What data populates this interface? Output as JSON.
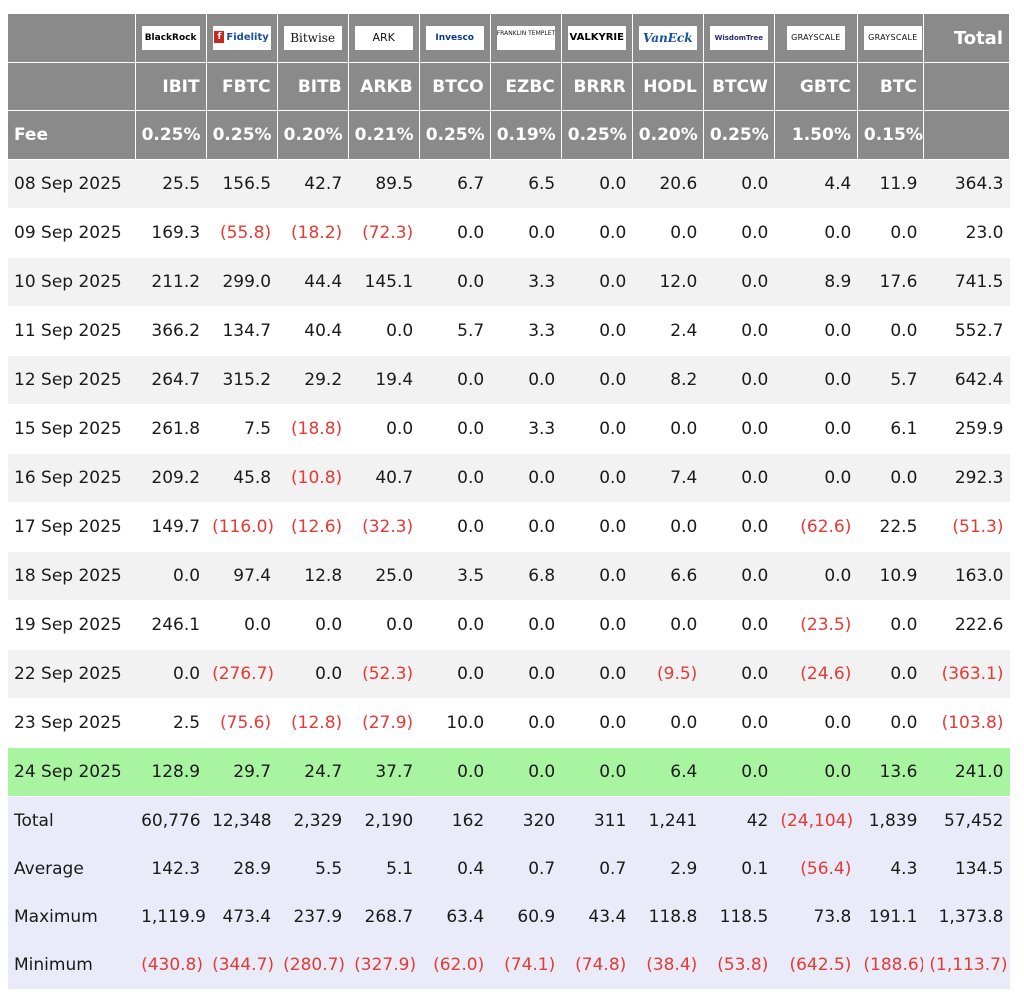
{
  "columns": [
    {
      "logo_text": "BlackRock",
      "logo_icon": "blackrock-logo",
      "ticker": "IBIT",
      "fee": "0.25%"
    },
    {
      "logo_text": "Fidelity",
      "logo_icon": "fidelity-logo",
      "ticker": "FBTC",
      "fee": "0.25%"
    },
    {
      "logo_text": "Bitwise",
      "logo_icon": "bitwise-logo",
      "ticker": "BITB",
      "fee": "0.20%"
    },
    {
      "logo_text": "ARK",
      "logo_icon": "ark-invest-logo",
      "ticker": "ARKB",
      "fee": "0.21%"
    },
    {
      "logo_text": "Invesco",
      "logo_icon": "invesco-logo",
      "ticker": "BTCO",
      "fee": "0.25%"
    },
    {
      "logo_text": "FRANKLIN TEMPLETON",
      "logo_icon": "franklin-templeton-logo",
      "ticker": "EZBC",
      "fee": "0.19%"
    },
    {
      "logo_text": "VALKYRIE",
      "logo_icon": "valkyrie-logo",
      "ticker": "BRRR",
      "fee": "0.25%"
    },
    {
      "logo_text": "VanEck",
      "logo_icon": "vaneck-logo",
      "ticker": "HODL",
      "fee": "0.20%"
    },
    {
      "logo_text": "WisdomTree",
      "logo_icon": "wisdomtree-logo",
      "ticker": "BTCW",
      "fee": "0.25%"
    },
    {
      "logo_text": "GRAYSCALE",
      "logo_icon": "grayscale-logo",
      "ticker": "GBTC",
      "fee": "1.50%"
    },
    {
      "logo_text": "GRAYSCALE",
      "logo_icon": "grayscale-logo",
      "ticker": "BTC",
      "fee": "0.15%"
    }
  ],
  "header": {
    "total_label": "Total",
    "fee_label": "Fee"
  },
  "rows": [
    {
      "date": "08 Sep 2025",
      "values": [
        "25.5",
        "156.5",
        "42.7",
        "89.5",
        "6.7",
        "6.5",
        "0.0",
        "20.6",
        "0.0",
        "4.4",
        "11.9"
      ],
      "total": "364.3"
    },
    {
      "date": "09 Sep 2025",
      "values": [
        "169.3",
        "(55.8)",
        "(18.2)",
        "(72.3)",
        "0.0",
        "0.0",
        "0.0",
        "0.0",
        "0.0",
        "0.0",
        "0.0"
      ],
      "total": "23.0"
    },
    {
      "date": "10 Sep 2025",
      "values": [
        "211.2",
        "299.0",
        "44.4",
        "145.1",
        "0.0",
        "3.3",
        "0.0",
        "12.0",
        "0.0",
        "8.9",
        "17.6"
      ],
      "total": "741.5"
    },
    {
      "date": "11 Sep 2025",
      "values": [
        "366.2",
        "134.7",
        "40.4",
        "0.0",
        "5.7",
        "3.3",
        "0.0",
        "2.4",
        "0.0",
        "0.0",
        "0.0"
      ],
      "total": "552.7"
    },
    {
      "date": "12 Sep 2025",
      "values": [
        "264.7",
        "315.2",
        "29.2",
        "19.4",
        "0.0",
        "0.0",
        "0.0",
        "8.2",
        "0.0",
        "0.0",
        "5.7"
      ],
      "total": "642.4"
    },
    {
      "date": "15 Sep 2025",
      "values": [
        "261.8",
        "7.5",
        "(18.8)",
        "0.0",
        "0.0",
        "3.3",
        "0.0",
        "0.0",
        "0.0",
        "0.0",
        "6.1"
      ],
      "total": "259.9"
    },
    {
      "date": "16 Sep 2025",
      "values": [
        "209.2",
        "45.8",
        "(10.8)",
        "40.7",
        "0.0",
        "0.0",
        "0.0",
        "7.4",
        "0.0",
        "0.0",
        "0.0"
      ],
      "total": "292.3"
    },
    {
      "date": "17 Sep 2025",
      "values": [
        "149.7",
        "(116.0)",
        "(12.6)",
        "(32.3)",
        "0.0",
        "0.0",
        "0.0",
        "0.0",
        "0.0",
        "(62.6)",
        "22.5"
      ],
      "total": "(51.3)"
    },
    {
      "date": "18 Sep 2025",
      "values": [
        "0.0",
        "97.4",
        "12.8",
        "25.0",
        "3.5",
        "6.8",
        "0.0",
        "6.6",
        "0.0",
        "0.0",
        "10.9"
      ],
      "total": "163.0"
    },
    {
      "date": "19 Sep 2025",
      "values": [
        "246.1",
        "0.0",
        "0.0",
        "0.0",
        "0.0",
        "0.0",
        "0.0",
        "0.0",
        "0.0",
        "(23.5)",
        "0.0"
      ],
      "total": "222.6"
    },
    {
      "date": "22 Sep 2025",
      "values": [
        "0.0",
        "(276.7)",
        "0.0",
        "(52.3)",
        "0.0",
        "0.0",
        "0.0",
        "(9.5)",
        "0.0",
        "(24.6)",
        "0.0"
      ],
      "total": "(363.1)"
    },
    {
      "date": "23 Sep 2025",
      "values": [
        "2.5",
        "(75.6)",
        "(12.8)",
        "(27.9)",
        "10.0",
        "0.0",
        "0.0",
        "0.0",
        "0.0",
        "0.0",
        "0.0"
      ],
      "total": "(103.8)"
    },
    {
      "date": "24 Sep 2025",
      "values": [
        "128.9",
        "29.7",
        "24.7",
        "37.7",
        "0.0",
        "0.0",
        "0.0",
        "6.4",
        "0.0",
        "0.0",
        "13.6"
      ],
      "total": "241.0",
      "highlight": true
    }
  ],
  "stats": [
    {
      "label": "Total",
      "values": [
        "60,776",
        "12,348",
        "2,329",
        "2,190",
        "162",
        "320",
        "311",
        "1,241",
        "42",
        "(24,104)",
        "1,839"
      ],
      "total": "57,452"
    },
    {
      "label": "Average",
      "values": [
        "142.3",
        "28.9",
        "5.5",
        "5.1",
        "0.4",
        "0.7",
        "0.7",
        "2.9",
        "0.1",
        "(56.4)",
        "4.3"
      ],
      "total": "134.5"
    },
    {
      "label": "Maximum",
      "values": [
        "1,119.9",
        "473.4",
        "237.9",
        "268.7",
        "63.4",
        "60.9",
        "43.4",
        "118.8",
        "118.5",
        "73.8",
        "191.1"
      ],
      "total": "1,373.8"
    },
    {
      "label": "Minimum",
      "values": [
        "(430.8)",
        "(344.7)",
        "(280.7)",
        "(327.9)",
        "(62.0)",
        "(74.1)",
        "(74.8)",
        "(38.4)",
        "(53.8)",
        "(642.5)",
        "(188.6)"
      ],
      "total": "(1,113.7)"
    }
  ],
  "colors": {
    "header_bg": "#8a8a8a",
    "row_stripe": "#f2f2f2",
    "highlight_row": "#a9f4a0",
    "stats_bg": "#e9ecf8",
    "negative_text": "#e53935"
  }
}
